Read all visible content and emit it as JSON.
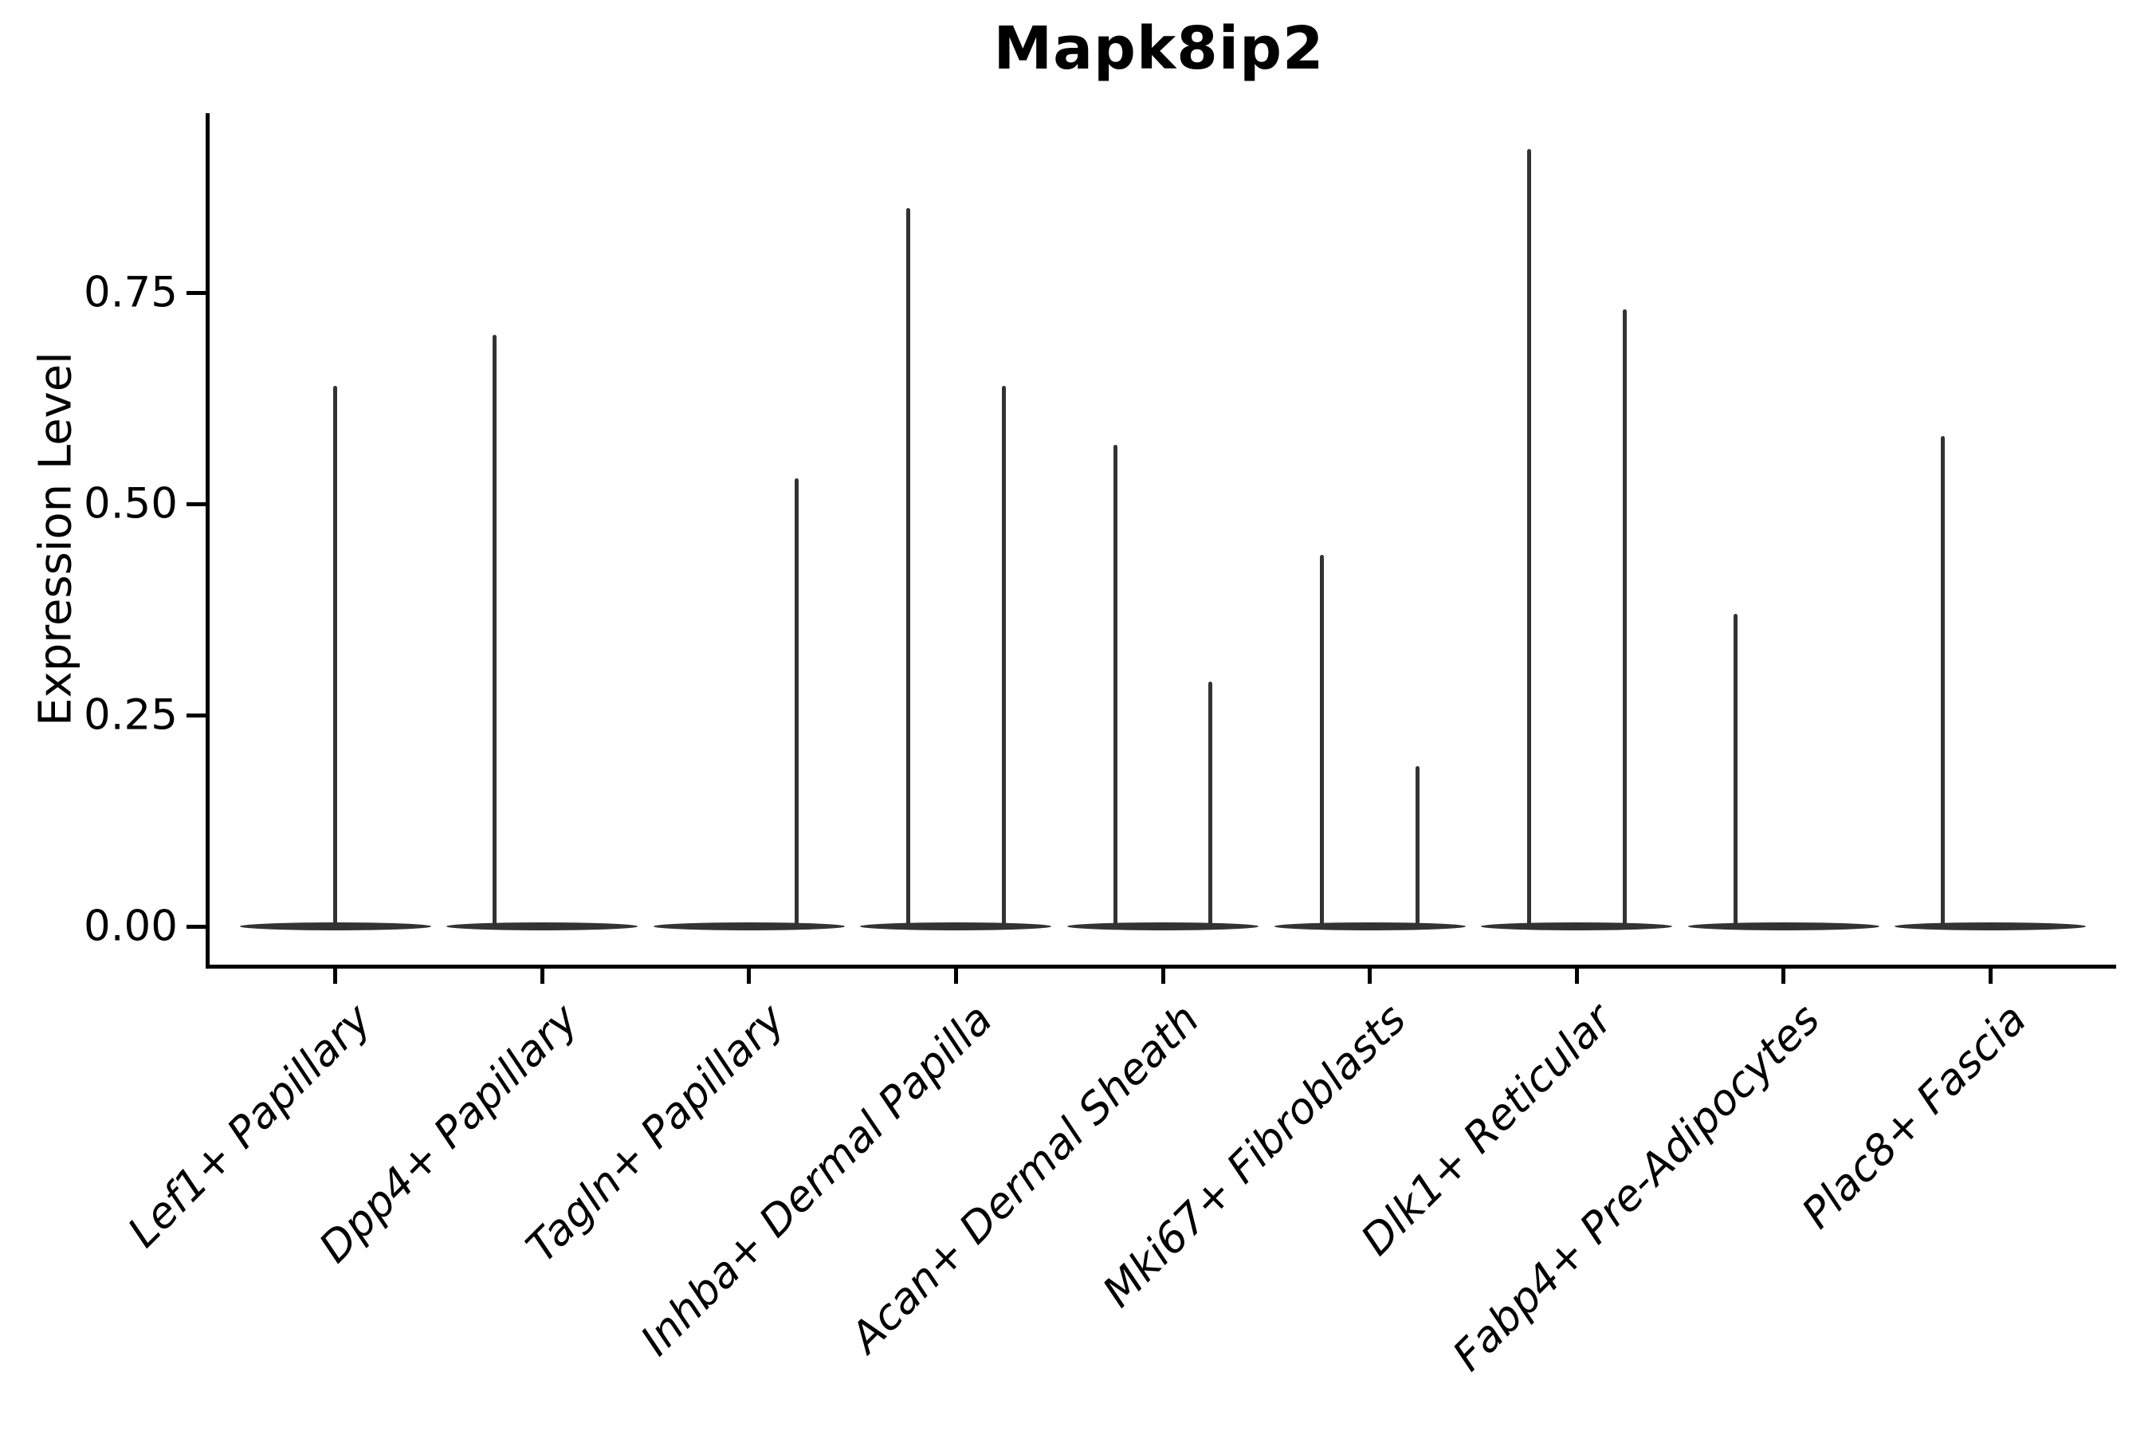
{
  "chart_data": {
    "type": "violin",
    "title": "Mapk8ip2",
    "xlabel": "",
    "ylabel": "Expression Level",
    "yticks": [
      0.0,
      0.25,
      0.5,
      0.75
    ],
    "ylim": [
      -0.045,
      0.96
    ],
    "grid": false,
    "legend": "none",
    "x_tick_label_rotation_deg": 45,
    "x_tick_label_style": "italic",
    "categories": [
      "Lef1+ Papillary",
      "Dpp4+ Papillary",
      "Tagln+ Papillary",
      "Inhba+ Dermal Papilla",
      "Acan+ Dermal Sheath",
      "Mki67+ Fibroblasts",
      "Dlk1+ Reticular",
      "Fabp4+ Pre-Adipocytes",
      "Plac8+ Fascia"
    ],
    "violins": [
      {
        "category": "Lef1+ Papillary",
        "body_at_zero": true,
        "spikes": [
          {
            "position": "center",
            "max": 0.64
          }
        ]
      },
      {
        "category": "Dpp4+ Papillary",
        "body_at_zero": true,
        "spikes": [
          {
            "position": "left",
            "max": 0.7
          }
        ]
      },
      {
        "category": "Tagln+ Papillary",
        "body_at_zero": true,
        "spikes": [
          {
            "position": "right",
            "max": 0.53
          }
        ]
      },
      {
        "category": "Inhba+ Dermal Papilla",
        "body_at_zero": true,
        "spikes": [
          {
            "position": "left",
            "max": 0.85
          },
          {
            "position": "right",
            "max": 0.64
          }
        ]
      },
      {
        "category": "Acan+ Dermal Sheath",
        "body_at_zero": true,
        "spikes": [
          {
            "position": "left",
            "max": 0.57
          },
          {
            "position": "right",
            "max": 0.29
          }
        ]
      },
      {
        "category": "Mki67+ Fibroblasts",
        "body_at_zero": true,
        "spikes": [
          {
            "position": "left",
            "max": 0.44
          },
          {
            "position": "right",
            "max": 0.19
          }
        ]
      },
      {
        "category": "Dlk1+ Reticular",
        "body_at_zero": true,
        "spikes": [
          {
            "position": "left",
            "max": 0.92
          },
          {
            "position": "right",
            "max": 0.73
          }
        ]
      },
      {
        "category": "Fabp4+ Pre-Adipocytes",
        "body_at_zero": true,
        "spikes": [
          {
            "position": "left",
            "max": 0.37
          }
        ]
      },
      {
        "category": "Plac8+ Fascia",
        "body_at_zero": true,
        "spikes": [
          {
            "position": "left",
            "max": 0.58
          }
        ]
      }
    ],
    "colors": {
      "violin": "#333333",
      "axis": "#000000",
      "text": "#000000",
      "background": "#ffffff"
    }
  }
}
